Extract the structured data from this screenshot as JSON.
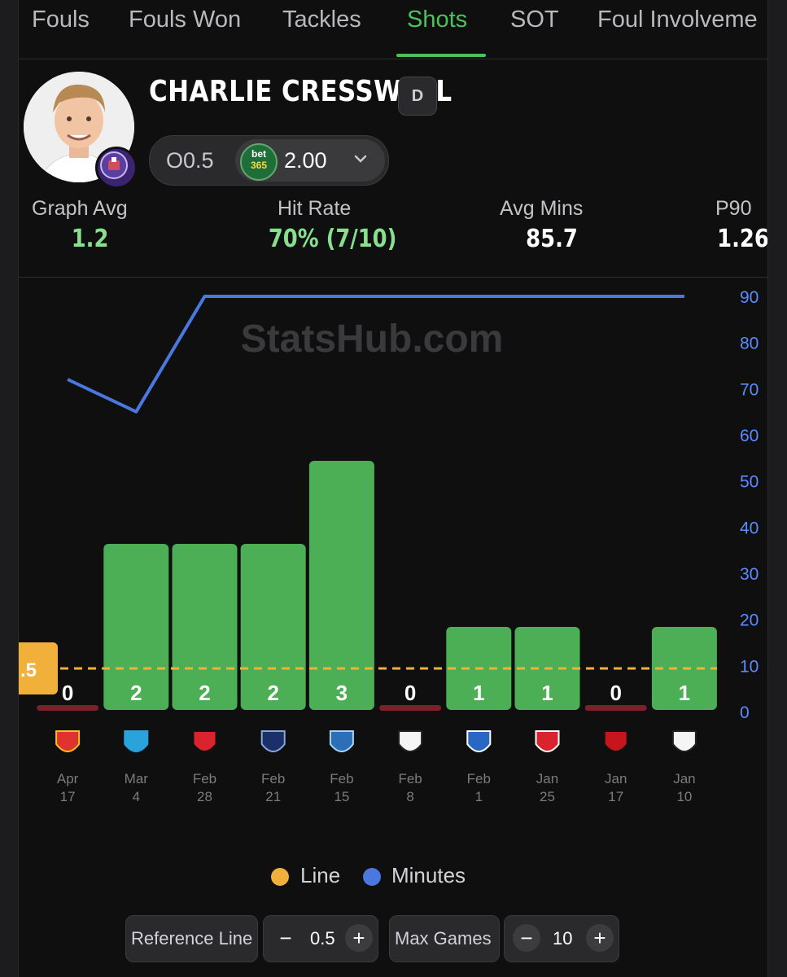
{
  "tabs": [
    {
      "label": "Fouls"
    },
    {
      "label": "Fouls Won"
    },
    {
      "label": "Tackles"
    },
    {
      "label": "Shots",
      "active": true
    },
    {
      "label": "SOT"
    },
    {
      "label": "Foul Involveme"
    }
  ],
  "player": {
    "name": "CHARLIE CRESSWELL",
    "position": "D",
    "line": "O0.5",
    "bookmaker": {
      "top": "bet",
      "bottom": "365"
    },
    "odds": "2.00"
  },
  "stats": {
    "graph_avg": {
      "label": "Graph Avg",
      "value": "1.2"
    },
    "hit_rate": {
      "label": "Hit Rate",
      "value": "70% (7/10)"
    },
    "avg_mins": {
      "label": "Avg Mins",
      "value": "85.7"
    },
    "p90": {
      "label": "P90",
      "value": "1.26"
    }
  },
  "watermark": "StatsHub.com",
  "chart_data": {
    "type": "bar",
    "categories": [
      {
        "month": "Apr",
        "day": "17",
        "opponent_icon": "rc-lens-crest-icon"
      },
      {
        "month": "Mar",
        "day": "4",
        "opponent_icon": "marseille-crest-icon"
      },
      {
        "month": "Feb",
        "day": "28",
        "opponent_icon": "rennes-crest-icon"
      },
      {
        "month": "Feb",
        "day": "21",
        "opponent_icon": "paris-fc-crest-icon"
      },
      {
        "month": "Feb",
        "day": "15",
        "opponent_icon": "le-havre-crest-icon"
      },
      {
        "month": "Feb",
        "day": "8",
        "opponent_icon": "angers-crest-icon"
      },
      {
        "month": "Feb",
        "day": "1",
        "opponent_icon": "auxerre-crest-icon"
      },
      {
        "month": "Jan",
        "day": "25",
        "opponent_icon": "brest-crest-icon"
      },
      {
        "month": "Jan",
        "day": "17",
        "opponent_icon": "nice-crest-icon"
      },
      {
        "month": "Jan",
        "day": "10",
        "opponent_icon": "angers-crest-icon"
      }
    ],
    "series": [
      {
        "name": "Shots",
        "values": [
          0,
          2,
          2,
          2,
          3,
          0,
          1,
          1,
          0,
          1
        ],
        "color": "#4caf55",
        "miss_color": "#7a2228"
      },
      {
        "name": "Minutes",
        "values": [
          72,
          65,
          90,
          90,
          90,
          90,
          90,
          90,
          90,
          90
        ],
        "color": "#4a78e0"
      }
    ],
    "reference_line": {
      "name": "Line",
      "value": 0.5,
      "label": ".5",
      "color": "#f0b03a"
    },
    "y_right": {
      "ticks": [
        0,
        10,
        20,
        30,
        40,
        50,
        60,
        70,
        80,
        90
      ],
      "range": [
        0,
        90
      ],
      "color": "#5b8cff"
    },
    "legend": [
      {
        "name": "Line",
        "color": "#f0b03a"
      },
      {
        "name": "Minutes",
        "color": "#4a78e0"
      }
    ]
  },
  "controls": {
    "reference_line": {
      "label": "Reference Line",
      "value": "0.5",
      "minus": "−",
      "plus": "+"
    },
    "max_games": {
      "label": "Max Games",
      "value": "10",
      "minus": "−",
      "plus": "+"
    }
  }
}
